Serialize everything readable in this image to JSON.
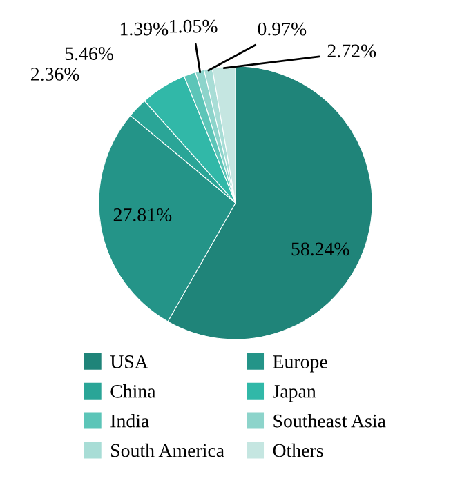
{
  "chart_data": {
    "type": "pie",
    "categories": [
      "USA",
      "Europe",
      "China",
      "Japan",
      "India",
      "Southeast Asia",
      "South America",
      "Others"
    ],
    "values": [
      58.24,
      27.81,
      2.36,
      5.46,
      1.39,
      1.05,
      0.97,
      2.72
    ],
    "value_labels": [
      "58.24%",
      "27.81%",
      "2.36%",
      "5.46%",
      "1.39%",
      "1.05%",
      "0.97%",
      "2.72%"
    ],
    "colors": [
      "#1f8479",
      "#249488",
      "#2aa597",
      "#31b8a8",
      "#5cc5b8",
      "#8dd4cb",
      "#a8ddd6",
      "#c5e6e1"
    ],
    "legend": "bottom"
  }
}
